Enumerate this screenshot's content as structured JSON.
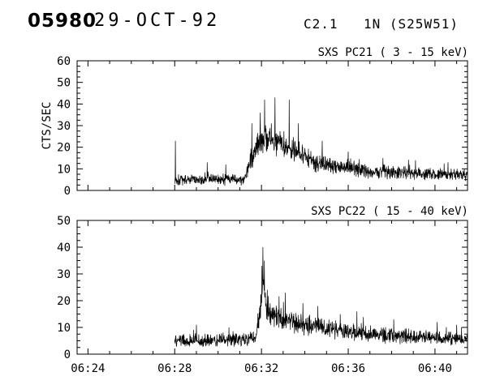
{
  "header": {
    "event_number": "05980",
    "date": "29-OCT-92",
    "xray_class": "C2.1",
    "optical_importance": "1N",
    "location": "(S25W51)"
  },
  "chart_data": [
    {
      "type": "line",
      "title": "SXS PC21 (  3 - 15 keV)",
      "ylabel": "CTS/SEC",
      "ylim": [
        0,
        60
      ],
      "yticks": [
        0,
        10,
        20,
        30,
        40,
        50,
        60
      ],
      "y_minor_step": 2.5,
      "xlim_minutes": [
        23.5,
        41.5
      ],
      "xticks": [
        {
          "minute": 24,
          "label": "06:24"
        },
        {
          "minute": 28,
          "label": "06:28"
        },
        {
          "minute": 32,
          "label": "06:32"
        },
        {
          "minute": 36,
          "label": "06:36"
        },
        {
          "minute": 40,
          "label": "06:40"
        }
      ],
      "x_minor_step": 1,
      "show_x_labels": false,
      "line_color": "#000000",
      "series": [
        {
          "name": "counts",
          "t_start": 28.0,
          "t_end": 41.5,
          "samples_per_minute": 90,
          "seed": 1337,
          "baseline_keypoints": [
            [
              28.0,
              5,
              3
            ],
            [
              31.2,
              5,
              3
            ],
            [
              31.45,
              12,
              5
            ],
            [
              31.8,
              22,
              7
            ],
            [
              32.3,
              24,
              8
            ],
            [
              33.0,
              22,
              7
            ],
            [
              33.6,
              18,
              6
            ],
            [
              34.5,
              13,
              5
            ],
            [
              35.5,
              11,
              4.5
            ],
            [
              37.0,
              9,
              4
            ],
            [
              39.0,
              8,
              3.5
            ],
            [
              41.5,
              7,
              3
            ]
          ],
          "spikes": [
            [
              28.03,
              23
            ],
            [
              29.5,
              13
            ],
            [
              30.35,
              12
            ],
            [
              31.55,
              31
            ],
            [
              31.95,
              36
            ],
            [
              32.15,
              42
            ],
            [
              32.62,
              43
            ],
            [
              33.28,
              42
            ],
            [
              33.7,
              31
            ],
            [
              34.8,
              23
            ],
            [
              36.0,
              18
            ],
            [
              37.6,
              15
            ],
            [
              39.1,
              14
            ],
            [
              40.6,
              13
            ]
          ]
        }
      ]
    },
    {
      "type": "line",
      "title": "SXS PC22 ( 15 - 40 keV)",
      "ylabel": "",
      "ylim": [
        0,
        50
      ],
      "yticks": [
        0,
        10,
        20,
        30,
        40,
        50
      ],
      "y_minor_step": 2.5,
      "xlim_minutes": [
        23.5,
        41.5
      ],
      "xticks": [
        {
          "minute": 24,
          "label": "06:24"
        },
        {
          "minute": 28,
          "label": "06:28"
        },
        {
          "minute": 32,
          "label": "06:32"
        },
        {
          "minute": 36,
          "label": "06:36"
        },
        {
          "minute": 40,
          "label": "06:40"
        }
      ],
      "x_minor_step": 1,
      "show_x_labels": true,
      "line_color": "#000000",
      "series": [
        {
          "name": "counts",
          "t_start": 28.0,
          "t_end": 41.5,
          "samples_per_minute": 90,
          "seed": 4242,
          "baseline_keypoints": [
            [
              28.0,
              5,
              3
            ],
            [
              31.7,
              5.5,
              3
            ],
            [
              31.95,
              16,
              6
            ],
            [
              32.05,
              28,
              8
            ],
            [
              32.25,
              16,
              6
            ],
            [
              33.0,
              13,
              5
            ],
            [
              34.0,
              11,
              4.5
            ],
            [
              36.0,
              8.5,
              4
            ],
            [
              38.0,
              7,
              3.5
            ],
            [
              41.5,
              5.5,
              2.5
            ]
          ],
          "spikes": [
            [
              29.0,
              11
            ],
            [
              30.5,
              10
            ],
            [
              32.02,
              33
            ],
            [
              32.07,
              40
            ],
            [
              32.13,
              35
            ],
            [
              33.1,
              23
            ],
            [
              34.6,
              18
            ],
            [
              36.4,
              16
            ],
            [
              38.1,
              13
            ],
            [
              40.1,
              12
            ],
            [
              41.0,
              11
            ]
          ]
        }
      ]
    }
  ]
}
